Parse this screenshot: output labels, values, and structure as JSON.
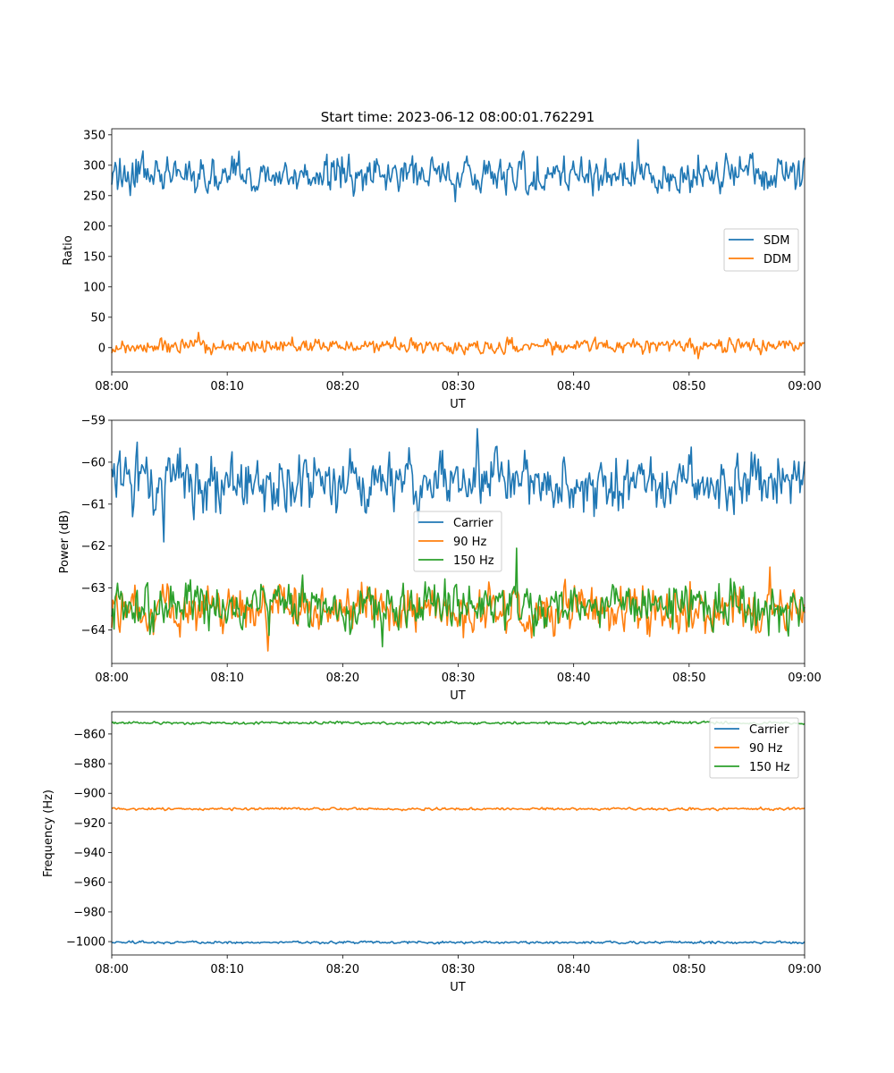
{
  "chart_data": [
    {
      "type": "line",
      "title": "Start time: 2023-06-12 08:00:01.762291",
      "xlabel": "UT",
      "ylabel": "Ratio",
      "x_range": [
        "08:00",
        "09:00"
      ],
      "xticks": [
        "08:00",
        "08:10",
        "08:20",
        "08:30",
        "08:40",
        "08:50",
        "09:00"
      ],
      "ylim": [
        -40,
        360
      ],
      "yticks": [
        0,
        50,
        100,
        150,
        200,
        250,
        300,
        350
      ],
      "ytick_labels": [
        "0",
        "50",
        "100",
        "150",
        "200",
        "250",
        "300",
        "350"
      ],
      "legend": "center-right",
      "grid": false,
      "series": [
        {
          "name": "SDM",
          "color": "#1f77b4",
          "mean": 285,
          "amplitude": 18,
          "min": 240,
          "max": 342
        },
        {
          "name": "DDM",
          "color": "#ff7f0e",
          "mean": 2,
          "amplitude": 7,
          "min": -18,
          "max": 25
        }
      ]
    },
    {
      "type": "line",
      "title": "",
      "xlabel": "UT",
      "ylabel": "Power (dB)",
      "x_range": [
        "08:00",
        "09:00"
      ],
      "xticks": [
        "08:00",
        "08:10",
        "08:20",
        "08:30",
        "08:40",
        "08:50",
        "09:00"
      ],
      "ylim": [
        -64.8,
        -59.0
      ],
      "yticks": [
        -64,
        -63,
        -62,
        -61,
        -60,
        -59
      ],
      "ytick_labels": [
        "−64",
        "−63",
        "−62",
        "−61",
        "−60",
        "−59"
      ],
      "legend": "center",
      "grid": false,
      "series": [
        {
          "name": "Carrier",
          "color": "#1f77b4",
          "mean": -60.5,
          "amplitude": 0.42,
          "min": -61.9,
          "max": -59.2
        },
        {
          "name": "90 Hz",
          "color": "#ff7f0e",
          "mean": -63.55,
          "amplitude": 0.33,
          "min": -64.5,
          "max": -62.5
        },
        {
          "name": "150 Hz",
          "color": "#2ca02c",
          "mean": -63.45,
          "amplitude": 0.33,
          "min": -64.4,
          "max": -62.05
        }
      ]
    },
    {
      "type": "line",
      "title": "",
      "xlabel": "UT",
      "ylabel": "Frequency (Hz)",
      "x_range": [
        "08:00",
        "09:00"
      ],
      "xticks": [
        "08:00",
        "08:10",
        "08:20",
        "08:30",
        "08:40",
        "08:50",
        "09:00"
      ],
      "ylim": [
        -1009,
        -845
      ],
      "yticks": [
        -1000,
        -980,
        -960,
        -940,
        -920,
        -900,
        -880,
        -860
      ],
      "ytick_labels": [
        "−1000",
        "−980",
        "−960",
        "−940",
        "−920",
        "−900",
        "−880",
        "−860"
      ],
      "legend": "top-right",
      "grid": false,
      "series": [
        {
          "name": "Carrier",
          "color": "#1f77b4",
          "mean": -1000.5,
          "amplitude": 0.5,
          "min": -1001.5,
          "max": -999.5
        },
        {
          "name": "90 Hz",
          "color": "#ff7f0e",
          "mean": -910.5,
          "amplitude": 0.5,
          "min": -911.7,
          "max": -909.3
        },
        {
          "name": "150 Hz",
          "color": "#2ca02c",
          "mean": -852.5,
          "amplitude": 0.5,
          "min": -853.7,
          "max": -851.3
        }
      ]
    }
  ]
}
